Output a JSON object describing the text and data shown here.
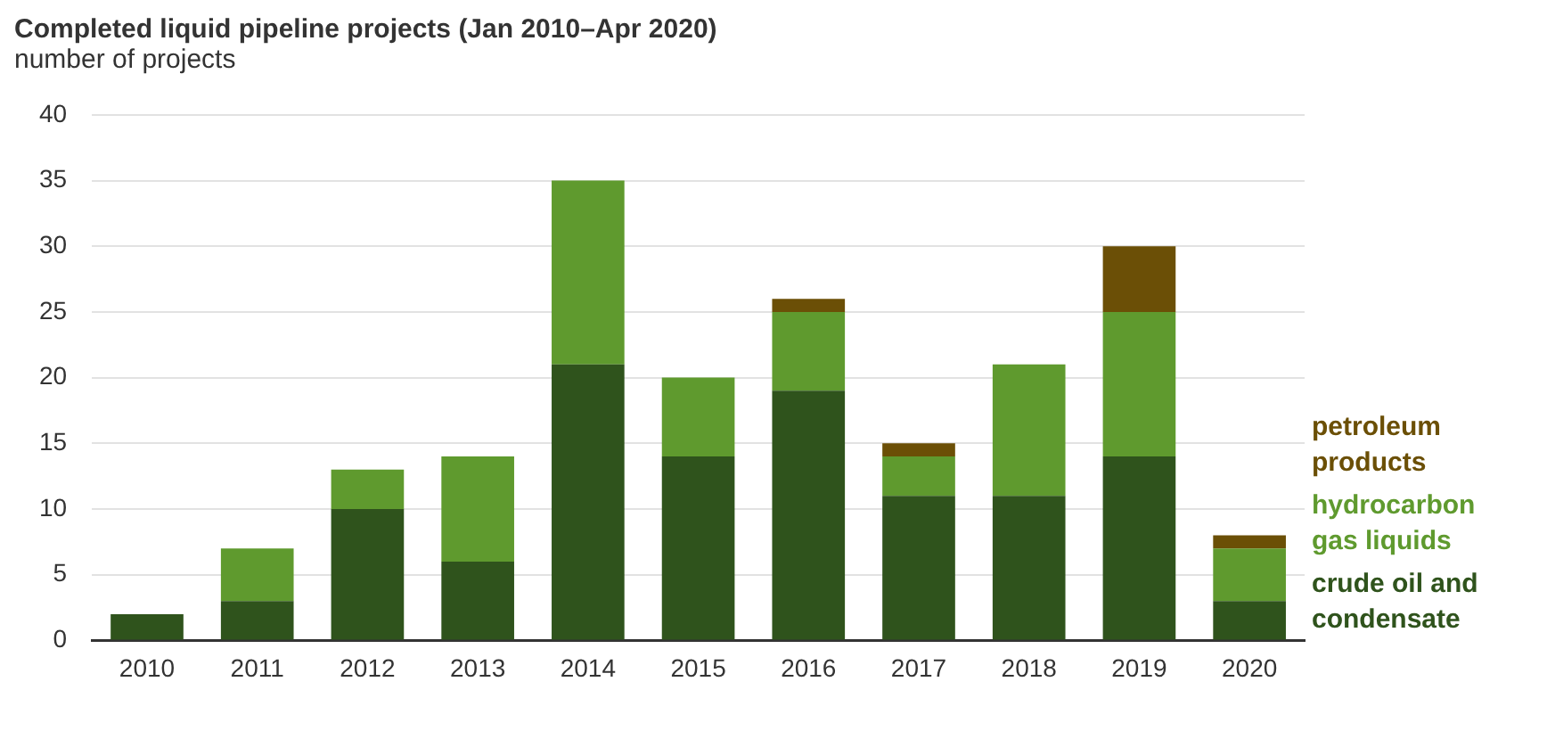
{
  "chart_data": {
    "type": "bar",
    "title": "Completed liquid pipeline projects (Jan 2010–Apr 2020)",
    "ylabel": "number of projects",
    "categories": [
      "2010",
      "2011",
      "2012",
      "2013",
      "2014",
      "2015",
      "2016",
      "2017",
      "2018",
      "2019",
      "2020"
    ],
    "stacked": true,
    "series": [
      {
        "name": "crude oil and condensate",
        "color": "#2f531c",
        "values": [
          2,
          3,
          10,
          6,
          21,
          14,
          19,
          11,
          11,
          14,
          3
        ]
      },
      {
        "name": "hydrocarbon gas liquids",
        "color": "#5f9a2e",
        "values": [
          0,
          4,
          3,
          8,
          14,
          6,
          6,
          3,
          10,
          11,
          4
        ]
      },
      {
        "name": "petroleum products",
        "color": "#6b4f06",
        "values": [
          0,
          0,
          0,
          0,
          0,
          0,
          1,
          1,
          0,
          5,
          1
        ]
      }
    ],
    "ylim": [
      0,
      40
    ],
    "yticks": [
      0,
      5,
      10,
      15,
      20,
      25,
      30,
      35,
      40
    ],
    "grid": "y",
    "legend": "right"
  }
}
